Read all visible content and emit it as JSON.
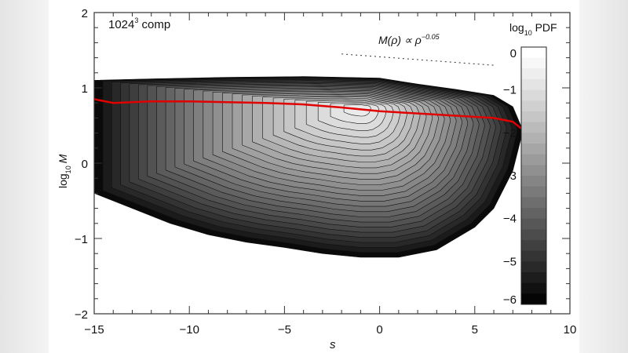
{
  "chart_data": {
    "type": "heatmap",
    "title": "1024³ comp",
    "title_base": "1024",
    "title_sup": "3",
    "title_rest": " comp",
    "xlabel": "s",
    "ylabel_base": "log",
    "ylabel_sub": "10",
    "ylabel_var": "M",
    "xlim": [
      -15,
      10
    ],
    "ylim": [
      -2,
      2
    ],
    "xticks": [
      "−15",
      "−10",
      "−5",
      "0",
      "5",
      "10"
    ],
    "xtick_values": [
      -15,
      -10,
      -5,
      0,
      5,
      10
    ],
    "yticks": [
      "2",
      "1",
      "0",
      "−1",
      "−2"
    ],
    "ytick_values": [
      2,
      1,
      0,
      -1,
      -2
    ],
    "colorbar": {
      "label_base": "log",
      "label_sub": "10",
      "label_rest": " PDF",
      "range": [
        -6,
        0
      ],
      "ticks": [
        "0",
        "−1",
        "−2",
        "−3",
        "−4",
        "−5",
        "−6"
      ],
      "tick_values": [
        0,
        -1,
        -2,
        -3,
        -4,
        -5,
        -6
      ]
    },
    "pdf_peak": {
      "s": -1,
      "log10M": 0.75
    },
    "pdf_upper_boundary": {
      "s": [
        -15,
        -12,
        -8,
        -4,
        0,
        2,
        4,
        6,
        7,
        7.5
      ],
      "log10M": [
        1.1,
        1.12,
        1.14,
        1.15,
        1.13,
        1.05,
        0.98,
        0.9,
        0.75,
        0.45
      ]
    },
    "pdf_lower_boundary": {
      "s": [
        -15,
        -13,
        -11,
        -9,
        -7,
        -5,
        -3,
        -1,
        1,
        3,
        5,
        6,
        7,
        7.5
      ],
      "log10M": [
        -0.4,
        -0.6,
        -0.8,
        -0.95,
        -1.05,
        -1.12,
        -1.2,
        -1.25,
        -1.25,
        -1.15,
        -0.85,
        -0.6,
        -0.1,
        0.4
      ]
    },
    "mean_curve": {
      "name": "mean log10 M",
      "color": "#e00000",
      "s": [
        -15,
        -14,
        -12,
        -10,
        -8,
        -6,
        -4,
        -2,
        0,
        2,
        4,
        6,
        7,
        7.5
      ],
      "log10M": [
        0.85,
        0.8,
        0.82,
        0.82,
        0.81,
        0.8,
        0.78,
        0.74,
        0.69,
        0.66,
        0.63,
        0.6,
        0.55,
        0.45
      ]
    },
    "annotation": {
      "text_base": "M(ρ) ∝ ρ",
      "text_sup": "−0.05",
      "line_s": [
        -2,
        6
      ],
      "line_log10M": [
        1.45,
        1.3
      ]
    }
  }
}
